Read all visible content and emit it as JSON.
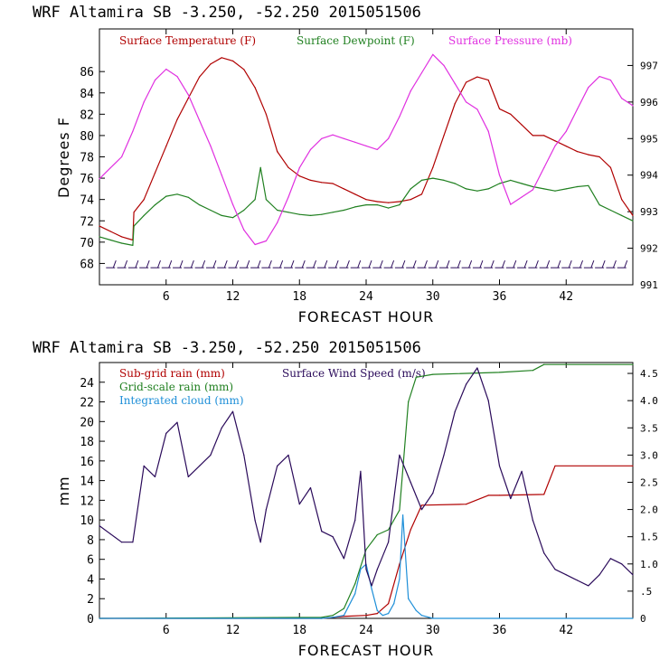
{
  "chart_data": [
    {
      "type": "line",
      "title": "WRF   Altamira   SB   -3.250, -52.250   2015051506",
      "xlabel": "FORECAST HOUR",
      "ylabel": "Degrees F",
      "xlim": [
        0,
        48
      ],
      "ylim": [
        66,
        90
      ],
      "y2lim": [
        991,
        998
      ],
      "x_ticks": [
        6,
        12,
        18,
        24,
        30,
        36,
        42
      ],
      "y_ticks": [
        68,
        70,
        72,
        74,
        76,
        78,
        80,
        82,
        84,
        86
      ],
      "y2_ticks": [
        991,
        992,
        993,
        994,
        995,
        996,
        997
      ],
      "legend": [
        "Surface Temperature (F)",
        "Surface Dewpoint (F)",
        "Surface Pressure (mb)"
      ],
      "colors": {
        "temperature": "#b00000",
        "dewpoint": "#208020",
        "pressure": "#e030e0",
        "wind": "#2a0a5a"
      },
      "series": [
        {
          "name": "Surface Temperature (F)",
          "axis": "left",
          "x": [
            0,
            1,
            2,
            3,
            3.1,
            4,
            5,
            6,
            7,
            8,
            9,
            10,
            11,
            12,
            13,
            14,
            15,
            16,
            17,
            18,
            19,
            20,
            21,
            22,
            23,
            24,
            25,
            26,
            27,
            28,
            29,
            30,
            31,
            32,
            33,
            34,
            35,
            36,
            37,
            38,
            39,
            40,
            41,
            42,
            43,
            44,
            45,
            46,
            47,
            48
          ],
          "y": [
            71.5,
            71.0,
            70.5,
            70.2,
            72.8,
            74.0,
            76.5,
            79.0,
            81.5,
            83.5,
            85.5,
            86.7,
            87.3,
            87.0,
            86.2,
            84.5,
            82.0,
            78.5,
            77.0,
            76.2,
            75.8,
            75.6,
            75.5,
            75.0,
            74.5,
            74.0,
            73.8,
            73.7,
            73.8,
            74.0,
            74.5,
            77.0,
            80.0,
            83.0,
            85.0,
            85.5,
            85.2,
            82.5,
            82.0,
            81.0,
            80.0,
            80.0,
            79.5,
            79.0,
            78.5,
            78.2,
            78.0,
            77.0,
            74.0,
            72.5
          ]
        },
        {
          "name": "Surface Dewpoint (F)",
          "axis": "left",
          "x": [
            0,
            1,
            2,
            3,
            3.1,
            4,
            5,
            6,
            7,
            8,
            9,
            10,
            11,
            12,
            13,
            14,
            14.5,
            15,
            16,
            17,
            18,
            19,
            20,
            21,
            22,
            23,
            24,
            25,
            26,
            27,
            28,
            29,
            30,
            31,
            32,
            33,
            34,
            35,
            36,
            37,
            38,
            39,
            40,
            41,
            42,
            43,
            44,
            45,
            46,
            47,
            48
          ],
          "y": [
            70.5,
            70.2,
            69.9,
            69.7,
            71.5,
            72.5,
            73.5,
            74.3,
            74.5,
            74.2,
            73.5,
            73.0,
            72.5,
            72.3,
            73.0,
            74.0,
            77.0,
            74.0,
            73.0,
            72.8,
            72.6,
            72.5,
            72.6,
            72.8,
            73.0,
            73.3,
            73.5,
            73.5,
            73.2,
            73.5,
            75.0,
            75.8,
            76.0,
            75.8,
            75.5,
            75.0,
            74.8,
            75.0,
            75.5,
            75.8,
            75.5,
            75.2,
            75.0,
            74.8,
            75.0,
            75.2,
            75.3,
            73.5,
            73.0,
            72.5,
            72.0
          ]
        },
        {
          "name": "Surface Pressure (mb)",
          "axis": "right",
          "x": [
            0,
            1,
            2,
            3,
            4,
            5,
            6,
            7,
            8,
            9,
            10,
            11,
            12,
            13,
            14,
            15,
            16,
            17,
            18,
            19,
            20,
            21,
            22,
            23,
            24,
            25,
            26,
            27,
            28,
            29,
            30,
            31,
            32,
            33,
            34,
            35,
            36,
            37,
            38,
            39,
            40,
            41,
            42,
            43,
            44,
            45,
            46,
            47,
            48
          ],
          "y": [
            993.9,
            994.2,
            994.5,
            995.2,
            996.0,
            996.6,
            996.9,
            996.7,
            996.2,
            995.5,
            994.8,
            994.0,
            993.2,
            992.5,
            992.1,
            992.2,
            992.7,
            993.4,
            994.2,
            994.7,
            995.0,
            995.1,
            995.0,
            994.9,
            994.8,
            994.7,
            995.0,
            995.6,
            996.3,
            996.8,
            997.3,
            997.0,
            996.5,
            996.0,
            995.8,
            995.2,
            994.0,
            993.2,
            993.4,
            993.6,
            994.2,
            994.8,
            995.2,
            995.8,
            996.4,
            996.7,
            996.6,
            996.1,
            995.9
          ]
        }
      ]
    },
    {
      "type": "line",
      "title": "WRF   Altamira   SB   -3.250, -52.250   2015051506",
      "xlabel": "FORECAST HOUR",
      "ylabel": "mm",
      "xlim": [
        0,
        48
      ],
      "ylim": [
        0,
        26
      ],
      "y2lim": [
        0,
        4.7
      ],
      "x_ticks": [
        6,
        12,
        18,
        24,
        30,
        36,
        42
      ],
      "y_ticks": [
        0,
        2,
        4,
        6,
        8,
        10,
        12,
        14,
        16,
        18,
        20,
        22,
        24
      ],
      "y2_ticks": [
        0,
        0.5,
        1.0,
        1.5,
        2.0,
        2.5,
        3.0,
        3.5,
        4.0,
        4.5
      ],
      "y2_tick_labels": [
        "0",
        ".5",
        "1.0",
        "1.5",
        "2.0",
        "2.5",
        "3.0",
        "3.5",
        "4.0",
        "4.5"
      ],
      "legend": [
        "Sub-grid rain (mm)",
        "Surface Wind Speed (m/s)",
        "Grid-scale rain (mm)",
        "Integrated cloud (mm)"
      ],
      "colors": {
        "subgrid": "#b00000",
        "wind": "#2a0a5a",
        "gridscale": "#208020",
        "cloud": "#1e8fd8"
      },
      "series": [
        {
          "name": "Sub-grid rain (mm)",
          "axis": "left",
          "x": [
            0,
            20,
            22,
            24,
            25,
            26,
            27,
            28,
            29,
            33,
            35,
            36,
            40,
            41,
            48
          ],
          "y": [
            0,
            0,
            0.2,
            0.3,
            0.5,
            1.5,
            5.5,
            9.0,
            11.5,
            11.6,
            12.5,
            12.5,
            12.6,
            15.5,
            15.5
          ]
        },
        {
          "name": "Grid-scale rain (mm)",
          "axis": "left",
          "x": [
            0,
            20,
            21,
            22,
            23,
            24,
            25,
            26,
            27,
            27.8,
            28.5,
            30,
            36,
            39,
            40,
            48
          ],
          "y": [
            0,
            0.1,
            0.3,
            1.0,
            3.5,
            7.0,
            8.5,
            9.0,
            11.0,
            22.0,
            24.5,
            24.8,
            25.0,
            25.2,
            25.8,
            25.8
          ]
        },
        {
          "name": "Integrated cloud (mm)",
          "axis": "left",
          "x": [
            0,
            20,
            21,
            22,
            23,
            23.5,
            24,
            24.5,
            25,
            25.5,
            26,
            26.5,
            27,
            27.3,
            27.8,
            28.5,
            29,
            30,
            48
          ],
          "y": [
            0,
            0,
            0.1,
            0.3,
            2.5,
            5.0,
            5.5,
            3.0,
            0.8,
            0.3,
            0.5,
            1.5,
            4.0,
            10.5,
            2.0,
            0.8,
            0.3,
            0,
            0
          ]
        },
        {
          "name": "Surface Wind Speed (m/s)",
          "axis": "right",
          "x": [
            0,
            1,
            2,
            3,
            4,
            5,
            6,
            7,
            8,
            9,
            10,
            11,
            12,
            13,
            14,
            14.5,
            15,
            16,
            17,
            18,
            19,
            20,
            21,
            22,
            23,
            23.5,
            24,
            24.5,
            25,
            26,
            27,
            28,
            29,
            30,
            31,
            32,
            33,
            34,
            35,
            36,
            37,
            38,
            39,
            40,
            41,
            42,
            43,
            44,
            45,
            46,
            47,
            48
          ],
          "y": [
            1.7,
            1.55,
            1.4,
            1.4,
            2.8,
            2.6,
            3.4,
            3.6,
            2.6,
            2.8,
            3.0,
            3.5,
            3.8,
            3.0,
            1.8,
            1.4,
            2.0,
            2.8,
            3.0,
            2.1,
            2.4,
            1.6,
            1.5,
            1.1,
            1.8,
            2.7,
            0.9,
            0.6,
            0.9,
            1.4,
            3.0,
            2.5,
            2.0,
            2.3,
            3.0,
            3.8,
            4.3,
            4.6,
            4.0,
            2.8,
            2.2,
            2.7,
            1.8,
            1.2,
            0.9,
            0.8,
            0.7,
            0.6,
            0.8,
            1.1,
            1.0,
            0.8
          ]
        }
      ]
    }
  ]
}
